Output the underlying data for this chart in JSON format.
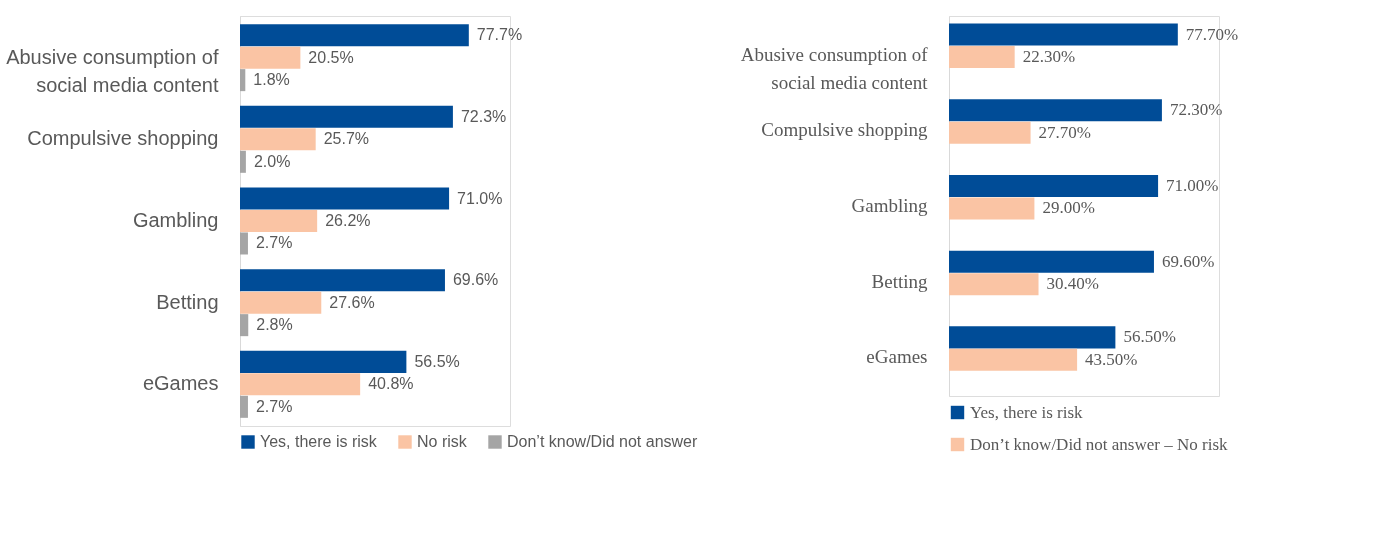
{
  "chart_data": [
    {
      "type": "bar",
      "orientation": "horizontal",
      "categories": [
        "Abusive consumption of social media content",
        "Compulsive shopping",
        "Gambling",
        "Betting",
        "eGames"
      ],
      "legend": "bottom",
      "series": [
        {
          "name": "Yes, there is risk",
          "color": "#004c97",
          "values": [
            77.7,
            72.3,
            71.0,
            69.6,
            56.5
          ],
          "value_labels": [
            "77.7%",
            "72.3%",
            "71.0%",
            "69.6%",
            "56.5%"
          ]
        },
        {
          "name": "No risk",
          "color": "#fac4a4",
          "values": [
            20.5,
            25.7,
            26.2,
            27.6,
            40.8
          ],
          "value_labels": [
            "20.5%",
            "25.7%",
            "26.2%",
            "27.6%",
            "40.8%"
          ]
        },
        {
          "name": "Don’t know/Did not answer",
          "color": "#a5a5a5",
          "values": [
            1.8,
            2.0,
            2.7,
            2.8,
            2.7
          ],
          "value_labels": [
            "1.8%",
            "2.0%",
            "2.7%",
            "2.8%",
            "2.7%"
          ]
        }
      ]
    },
    {
      "type": "bar",
      "orientation": "horizontal",
      "categories": [
        "Abusive consumption of social media content",
        "Compulsive shopping",
        "Gambling",
        "Betting",
        "eGames"
      ],
      "legend": "bottom",
      "series": [
        {
          "name": "Yes, there is risk",
          "color": "#004c97",
          "values": [
            77.7,
            72.3,
            71.0,
            69.6,
            56.5
          ],
          "value_labels": [
            "77.70%",
            "72.30%",
            "71.00%",
            "69.60%",
            "56.50%"
          ]
        },
        {
          "name": "Don’t know/Did not answer – No risk",
          "color": "#fac4a4",
          "values": [
            22.3,
            27.7,
            29.0,
            30.4,
            43.5
          ],
          "value_labels": [
            "22.30%",
            "27.70%",
            "29.00%",
            "30.40%",
            "43.50%"
          ]
        }
      ]
    }
  ]
}
